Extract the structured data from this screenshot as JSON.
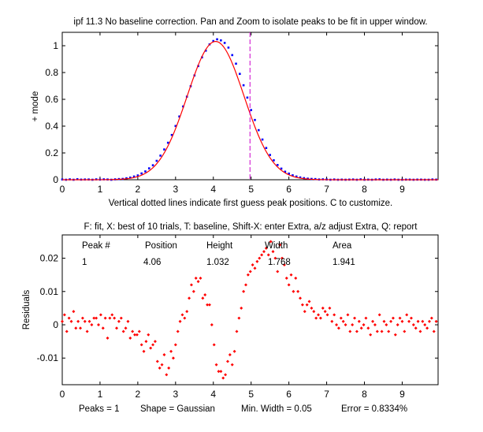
{
  "colors": {
    "background": "#ffffff",
    "axes": "#000000",
    "model_line": "#ff0000",
    "data_points": "#0000ff",
    "guess_line": "#cc00cc",
    "residual_points": "#ff0000"
  },
  "chart_data": [
    {
      "type": "line",
      "title": "ipf 11.3 No baseline correction. Pan and Zoom to isolate peaks to be fit in upper window.",
      "xlabel": "Vertical dotted lines indicate first guess peak positions. C to customize.",
      "ylabel": "+ mode",
      "xlim": [
        0,
        9.95
      ],
      "ylim": [
        0,
        1.1
      ],
      "xticks": [
        0,
        1,
        2,
        3,
        4,
        5,
        6,
        7,
        8,
        9
      ],
      "yticks": [
        0,
        0.2,
        0.4,
        0.6,
        0.8,
        1
      ],
      "ytick_labels": [
        "0",
        "0.2",
        "0.4",
        "0.6",
        "0.8",
        "1"
      ],
      "peak_guess_x": 4.97,
      "series": [
        {
          "name": "data",
          "style": "points",
          "x": [
            0.0,
            0.1,
            0.2,
            0.3,
            0.4,
            0.5,
            0.6,
            0.7,
            0.8,
            0.9,
            1.0,
            1.1,
            1.2,
            1.3,
            1.4,
            1.5,
            1.6,
            1.7,
            1.8,
            1.9,
            2.0,
            2.1,
            2.2,
            2.3,
            2.4,
            2.5,
            2.6,
            2.7,
            2.8,
            2.9,
            3.0,
            3.1,
            3.2,
            3.3,
            3.4,
            3.5,
            3.6,
            3.7,
            3.8,
            3.9,
            4.0,
            4.1,
            4.2,
            4.3,
            4.4,
            4.5,
            4.6,
            4.7,
            4.8,
            4.9,
            5.0,
            5.1,
            5.2,
            5.3,
            5.4,
            5.5,
            5.6,
            5.7,
            5.8,
            5.9,
            6.0,
            6.1,
            6.2,
            6.3,
            6.4,
            6.5,
            6.6,
            6.7,
            6.8,
            6.9,
            7.0,
            7.1,
            7.2,
            7.3,
            7.4,
            7.5,
            7.6,
            7.7,
            7.8,
            7.9,
            8.0,
            8.1,
            8.2,
            8.3,
            8.4,
            8.5,
            8.6,
            8.7,
            8.8,
            8.9,
            9.0,
            9.1,
            9.2,
            9.3,
            9.4,
            9.5,
            9.6,
            9.7,
            9.8,
            9.9
          ],
          "y": [
            0.002,
            0.0,
            0.003,
            0.0,
            0.004,
            0.001,
            0.002,
            0.002,
            0.0,
            0.003,
            0.001,
            0.003,
            0.002,
            0.0,
            0.003,
            0.005,
            0.006,
            0.011,
            0.016,
            0.024,
            0.032,
            0.047,
            0.062,
            0.085,
            0.108,
            0.141,
            0.18,
            0.226,
            0.276,
            0.334,
            0.401,
            0.472,
            0.547,
            0.62,
            0.698,
            0.778,
            0.848,
            0.913,
            0.963,
            1.01,
            1.035,
            1.048,
            1.04,
            1.021,
            0.986,
            0.93,
            0.866,
            0.79,
            0.705,
            0.613,
            0.52,
            0.446,
            0.37,
            0.3,
            0.237,
            0.185,
            0.145,
            0.11,
            0.083,
            0.06,
            0.046,
            0.033,
            0.024,
            0.017,
            0.012,
            0.008,
            0.006,
            0.005,
            0.002,
            0.003,
            0.002,
            0.0,
            0.002,
            0.0,
            0.001,
            0.0,
            0.001,
            0.002,
            0.0,
            0.003,
            0.0,
            0.001,
            0.0,
            0.002,
            0.003,
            0.0,
            0.001,
            0.0,
            0.002,
            0.0,
            0.0,
            0.001,
            0.001,
            0.0,
            0.001,
            0.001,
            0.0,
            0.0,
            0.002,
            0.001
          ]
        },
        {
          "name": "fit",
          "style": "line",
          "peak_center": 4.06,
          "peak_height": 1.032,
          "peak_width": 1.768
        }
      ]
    },
    {
      "type": "scatter",
      "title": "F: fit, X: best of 10 trials, T: baseline, Shift-X: enter Extra, a/z adjust Extra, Q: report",
      "xlabel": "",
      "ylabel": "Residuals",
      "xlim": [
        0,
        9.95
      ],
      "ylim": [
        -0.018,
        0.027
      ],
      "xticks": [
        0,
        1,
        2,
        3,
        4,
        5,
        6,
        7,
        8,
        9
      ],
      "yticks": [
        -0.01,
        0,
        0.01,
        0.02
      ],
      "ytick_labels": [
        "-0.01",
        "0",
        "0.01",
        "0.02"
      ],
      "x": [
        0.0,
        0.06,
        0.12,
        0.18,
        0.24,
        0.3,
        0.36,
        0.42,
        0.48,
        0.54,
        0.6,
        0.66,
        0.72,
        0.78,
        0.84,
        0.9,
        0.96,
        1.02,
        1.08,
        1.14,
        1.2,
        1.26,
        1.32,
        1.38,
        1.44,
        1.5,
        1.56,
        1.62,
        1.68,
        1.74,
        1.8,
        1.86,
        1.92,
        1.98,
        2.04,
        2.1,
        2.16,
        2.22,
        2.28,
        2.34,
        2.4,
        2.46,
        2.52,
        2.58,
        2.64,
        2.7,
        2.76,
        2.82,
        2.88,
        2.94,
        3.0,
        3.06,
        3.12,
        3.18,
        3.24,
        3.3,
        3.36,
        3.42,
        3.48,
        3.54,
        3.6,
        3.66,
        3.72,
        3.78,
        3.84,
        3.9,
        3.96,
        4.02,
        4.08,
        4.14,
        4.2,
        4.26,
        4.32,
        4.38,
        4.44,
        4.5,
        4.56,
        4.62,
        4.68,
        4.74,
        4.8,
        4.86,
        4.92,
        4.98,
        5.04,
        5.1,
        5.16,
        5.22,
        5.28,
        5.34,
        5.4,
        5.46,
        5.52,
        5.58,
        5.64,
        5.7,
        5.76,
        5.82,
        5.88,
        5.94,
        6.0,
        6.06,
        6.12,
        6.18,
        6.24,
        6.3,
        6.36,
        6.42,
        6.48,
        6.54,
        6.6,
        6.66,
        6.72,
        6.78,
        6.84,
        6.9,
        6.96,
        7.02,
        7.08,
        7.14,
        7.2,
        7.26,
        7.32,
        7.38,
        7.44,
        7.5,
        7.56,
        7.62,
        7.68,
        7.74,
        7.8,
        7.86,
        7.92,
        7.98,
        8.04,
        8.1,
        8.16,
        8.22,
        8.28,
        8.34,
        8.4,
        8.46,
        8.52,
        8.58,
        8.64,
        8.7,
        8.76,
        8.82,
        8.88,
        8.94,
        9.0,
        9.06,
        9.12,
        9.18,
        9.24,
        9.3,
        9.36,
        9.42,
        9.48,
        9.54,
        9.6,
        9.66,
        9.72,
        9.78,
        9.84,
        9.9
      ],
      "y": [
        0.001,
        0.003,
        -0.002,
        0.002,
        0.001,
        0.004,
        -0.001,
        0.001,
        -0.001,
        0.002,
        0.001,
        -0.002,
        0.001,
        0.0,
        0.002,
        0.002,
        0.0,
        0.003,
        -0.001,
        0.002,
        -0.004,
        0.002,
        0.003,
        0.002,
        -0.001,
        0.001,
        0.002,
        -0.002,
        -0.001,
        0.001,
        -0.004,
        -0.002,
        -0.003,
        -0.003,
        -0.002,
        -0.006,
        -0.008,
        -0.005,
        -0.003,
        -0.007,
        -0.006,
        -0.005,
        -0.011,
        -0.013,
        -0.012,
        -0.009,
        -0.015,
        -0.013,
        -0.008,
        -0.01,
        -0.006,
        -0.002,
        0.001,
        0.003,
        0.002,
        0.004,
        0.008,
        0.012,
        0.01,
        0.014,
        0.013,
        0.014,
        0.008,
        0.009,
        0.006,
        0.006,
        0.0,
        -0.006,
        -0.012,
        -0.014,
        -0.014,
        -0.016,
        -0.015,
        -0.011,
        -0.009,
        -0.012,
        -0.008,
        -0.002,
        0.002,
        0.005,
        0.01,
        0.012,
        0.015,
        0.016,
        0.018,
        0.017,
        0.019,
        0.02,
        0.021,
        0.022,
        0.023,
        0.021,
        0.025,
        0.022,
        0.02,
        0.016,
        0.024,
        0.02,
        0.018,
        0.014,
        0.012,
        0.015,
        0.01,
        0.014,
        0.01,
        0.008,
        0.006,
        0.004,
        0.006,
        0.007,
        0.005,
        0.004,
        0.002,
        0.003,
        0.002,
        0.005,
        0.004,
        0.003,
        0.005,
        0.001,
        0.003,
        0.0,
        -0.001,
        0.002,
        0.001,
        0.0,
        0.003,
        -0.002,
        0.0,
        0.002,
        -0.002,
        0.001,
        -0.001,
        0.0,
        0.002,
        -0.001,
        -0.003,
        0.001,
        0.0,
        -0.002,
        0.003,
        -0.002,
        0.001,
        0.0,
        -0.002,
        0.001,
        0.002,
        -0.003,
        0.0,
        0.002,
        0.001,
        -0.002,
        0.003,
        0.001,
        0.002,
        0.0,
        -0.001,
        0.001,
        -0.002,
        0.001,
        0.0,
        -0.001,
        0.001,
        0.002,
        -0.002,
        0.001
      ],
      "results_table": {
        "headers": [
          "Peak #",
          "Position",
          "Height",
          "Width",
          "Area"
        ],
        "rows": [
          [
            "1",
            "4.06",
            "1.032",
            "1.768",
            "1.941"
          ]
        ]
      },
      "status_line": {
        "peaks": "Peaks = 1",
        "shape": "Shape = Gaussian",
        "min_width": "Min. Width = 0.05",
        "error": "Error = 0.8334%"
      }
    }
  ]
}
